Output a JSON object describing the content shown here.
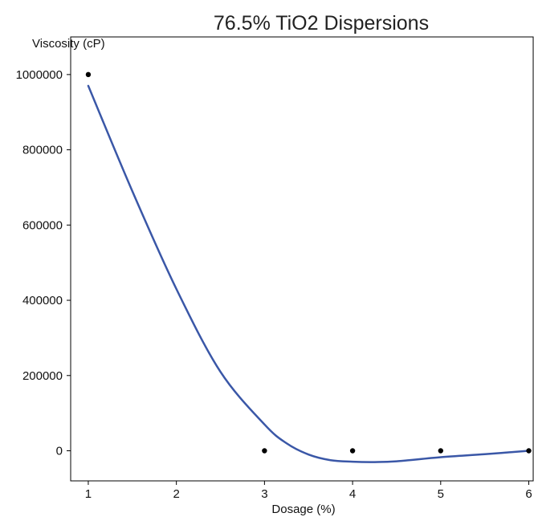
{
  "chart_data": {
    "type": "scatter",
    "title": "76.5% TiO2 Dispersions",
    "xlabel": "Dosage (%)",
    "ylabel": "Viscosity (cP)",
    "xlim": [
      0.8,
      6.05
    ],
    "ylim": [
      -80000,
      1100000
    ],
    "xticks": [
      1,
      2,
      3,
      4,
      5,
      6
    ],
    "yticks": [
      0,
      200000,
      400000,
      600000,
      800000,
      1000000
    ],
    "grid": false,
    "series": [
      {
        "kind": "points",
        "x": [
          1,
          3,
          4,
          5,
          6
        ],
        "y": [
          1000000,
          0,
          0,
          0,
          0
        ]
      },
      {
        "kind": "fit-line",
        "x": [
          1,
          1.5,
          2,
          2.5,
          3,
          3.25,
          3.5,
          3.75,
          4,
          4.25,
          4.5,
          5,
          5.5,
          6
        ],
        "y": [
          970000,
          690000,
          430000,
          210000,
          70000,
          20000,
          -10000,
          -25000,
          -29000,
          -30000,
          -28000,
          -17000,
          -9000,
          0
        ]
      }
    ],
    "colors": {
      "fit_line": "#3a57a7",
      "points": "#000000",
      "axis": "#000000"
    }
  }
}
